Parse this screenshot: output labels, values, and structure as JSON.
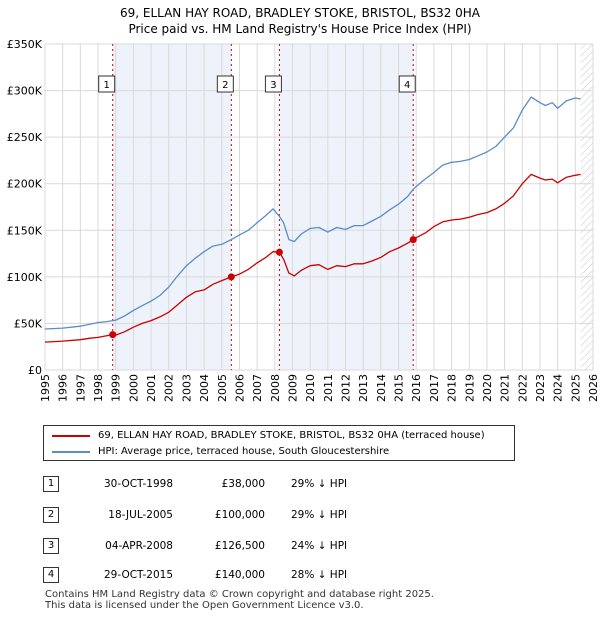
{
  "title": {
    "line1": "69, ELLAN HAY ROAD, BRADLEY STOKE, BRISTOL, BS32 0HA",
    "line2": "Price paid vs. HM Land Registry's House Price Index (HPI)"
  },
  "chart_data": {
    "type": "line",
    "title": "Price paid vs. HM Land Registry's House Price Index (HPI)",
    "xlabel": "",
    "ylabel": "",
    "xlim": [
      1995,
      2026
    ],
    "ylim": [
      0,
      350000
    ],
    "y_ticks": [
      0,
      50000,
      100000,
      150000,
      200000,
      250000,
      300000,
      350000
    ],
    "y_tick_labels": [
      "£0",
      "£50K",
      "£100K",
      "£150K",
      "£200K",
      "£250K",
      "£300K",
      "£350K"
    ],
    "x_ticks": [
      1995,
      1996,
      1997,
      1998,
      1999,
      2000,
      2001,
      2002,
      2003,
      2004,
      2005,
      2006,
      2007,
      2008,
      2009,
      2010,
      2011,
      2012,
      2013,
      2014,
      2015,
      2016,
      2017,
      2018,
      2019,
      2020,
      2021,
      2022,
      2023,
      2024,
      2025,
      2026
    ],
    "x_tick_labels": [
      "1995",
      "1996",
      "1997",
      "1998",
      "1999",
      "2000",
      "2001",
      "2002",
      "2003",
      "2004",
      "2005",
      "2006",
      "2007",
      "2008",
      "2009",
      "2010",
      "2011",
      "2012",
      "2013",
      "2014",
      "2015",
      "2016",
      "2017",
      "2018",
      "2019",
      "2020",
      "2021",
      "2022",
      "2023",
      "2024",
      "2025",
      "2026"
    ],
    "series": [
      {
        "name": "69, ELLAN HAY ROAD, BRADLEY STOKE, BRISTOL, BS32 0HA (terraced house)",
        "color": "#cc0000",
        "x": [
          1995,
          1996,
          1997,
          1997.5,
          1998,
          1998.83,
          1999,
          1999.5,
          2000,
          2000.5,
          2001,
          2001.5,
          2002,
          2002.5,
          2003,
          2003.5,
          2004,
          2004.5,
          2005,
          2005.54,
          2006,
          2006.5,
          2007,
          2007.5,
          2007.9,
          2008.26,
          2008.5,
          2008.8,
          2009.1,
          2009.5,
          2010,
          2010.5,
          2011,
          2011.5,
          2012,
          2012.5,
          2013,
          2013.5,
          2014,
          2014.5,
          2015,
          2015.5,
          2015.83,
          2016,
          2016.5,
          2017,
          2017.5,
          2018,
          2018.5,
          2019,
          2019.5,
          2020,
          2020.5,
          2021,
          2021.5,
          2022,
          2022.5,
          2023,
          2023.3,
          2023.7,
          2024,
          2024.5,
          2025,
          2025.3
        ],
        "y": [
          30000,
          31000,
          32500,
          34000,
          35000,
          38000,
          37500,
          41000,
          46000,
          50000,
          53000,
          57000,
          62000,
          70000,
          78000,
          84000,
          86000,
          92000,
          96000,
          100000,
          103000,
          108000,
          115000,
          121000,
          127000,
          126500,
          119000,
          104000,
          101000,
          107000,
          112000,
          113000,
          108000,
          112000,
          111000,
          114000,
          114000,
          117000,
          121000,
          127000,
          131000,
          136000,
          140000,
          142000,
          147000,
          154000,
          159000,
          161000,
          162000,
          164000,
          167000,
          169000,
          173000,
          179000,
          187000,
          200000,
          210000,
          206000,
          204000,
          205000,
          201000,
          207000,
          209000,
          210000
        ]
      },
      {
        "name": "HPI: Average price, terraced house, South Gloucestershire",
        "color": "#5b8cc8",
        "x": [
          1995,
          1996,
          1997,
          1997.5,
          1998,
          1998.5,
          1998.83,
          1999,
          1999.5,
          2000,
          2000.5,
          2001,
          2001.5,
          2002,
          2002.5,
          2003,
          2003.5,
          2004,
          2004.5,
          2005,
          2005.54,
          2006,
          2006.5,
          2007,
          2007.5,
          2007.9,
          2008.26,
          2008.5,
          2008.8,
          2009.1,
          2009.5,
          2010,
          2010.5,
          2011,
          2011.5,
          2012,
          2012.5,
          2013,
          2013.5,
          2014,
          2014.5,
          2015,
          2015.5,
          2015.83,
          2016,
          2016.5,
          2017,
          2017.5,
          2018,
          2018.5,
          2019,
          2019.5,
          2020,
          2020.5,
          2021,
          2021.5,
          2022,
          2022.5,
          2023,
          2023.3,
          2023.7,
          2024,
          2024.5,
          2025,
          2025.3
        ],
        "y": [
          44000,
          45000,
          47000,
          49000,
          51000,
          52000,
          53000,
          53500,
          58000,
          64000,
          69000,
          74000,
          80000,
          89000,
          101000,
          112000,
          120000,
          127000,
          133000,
          135000,
          140000,
          145000,
          150000,
          158000,
          166000,
          173000,
          165000,
          158000,
          140000,
          138000,
          146000,
          152000,
          153000,
          148000,
          153000,
          151000,
          155000,
          155000,
          160000,
          165000,
          172000,
          178000,
          186000,
          194000,
          197000,
          205000,
          212000,
          220000,
          223000,
          224000,
          226000,
          230000,
          234000,
          240000,
          250000,
          260000,
          279000,
          293000,
          287000,
          284000,
          287000,
          281000,
          289000,
          292000,
          291000
        ]
      }
    ],
    "sales": [
      {
        "id": "1",
        "x": 1998.83,
        "price": 38000
      },
      {
        "id": "2",
        "x": 2005.54,
        "price": 100000
      },
      {
        "id": "3",
        "x": 2008.26,
        "price": 126500
      },
      {
        "id": "4",
        "x": 2015.83,
        "price": 140000
      }
    ],
    "shaded_ranges": [
      [
        1998.83,
        2005.54
      ],
      [
        2008.26,
        2015.83
      ]
    ],
    "forecast_hatch_from": 2025.3,
    "colors": {
      "price_line": "#cc0000",
      "hpi_line": "#5b8cc8",
      "shade": "#eef2fb",
      "grid": "#d9d9d9",
      "vline": "#cc0000"
    }
  },
  "legend": {
    "items": [
      {
        "label": "69, ELLAN HAY ROAD, BRADLEY STOKE, BRISTOL, BS32 0HA (terraced house)",
        "color": "#cc0000"
      },
      {
        "label": "HPI: Average price, terraced house, South Gloucestershire",
        "color": "#5b8cc8"
      }
    ]
  },
  "transactions": [
    {
      "num": "1",
      "date": "30-OCT-1998",
      "price": "£38,000",
      "hpi": "29% ↓ HPI"
    },
    {
      "num": "2",
      "date": "18-JUL-2005",
      "price": "£100,000",
      "hpi": "29% ↓ HPI"
    },
    {
      "num": "3",
      "date": "04-APR-2008",
      "price": "£126,500",
      "hpi": "24% ↓ HPI"
    },
    {
      "num": "4",
      "date": "29-OCT-2015",
      "price": "£140,000",
      "hpi": "28% ↓ HPI"
    }
  ],
  "footer": {
    "line1": "Contains HM Land Registry data © Crown copyright and database right 2025.",
    "line2": "This data is licensed under the Open Government Licence v3.0."
  }
}
